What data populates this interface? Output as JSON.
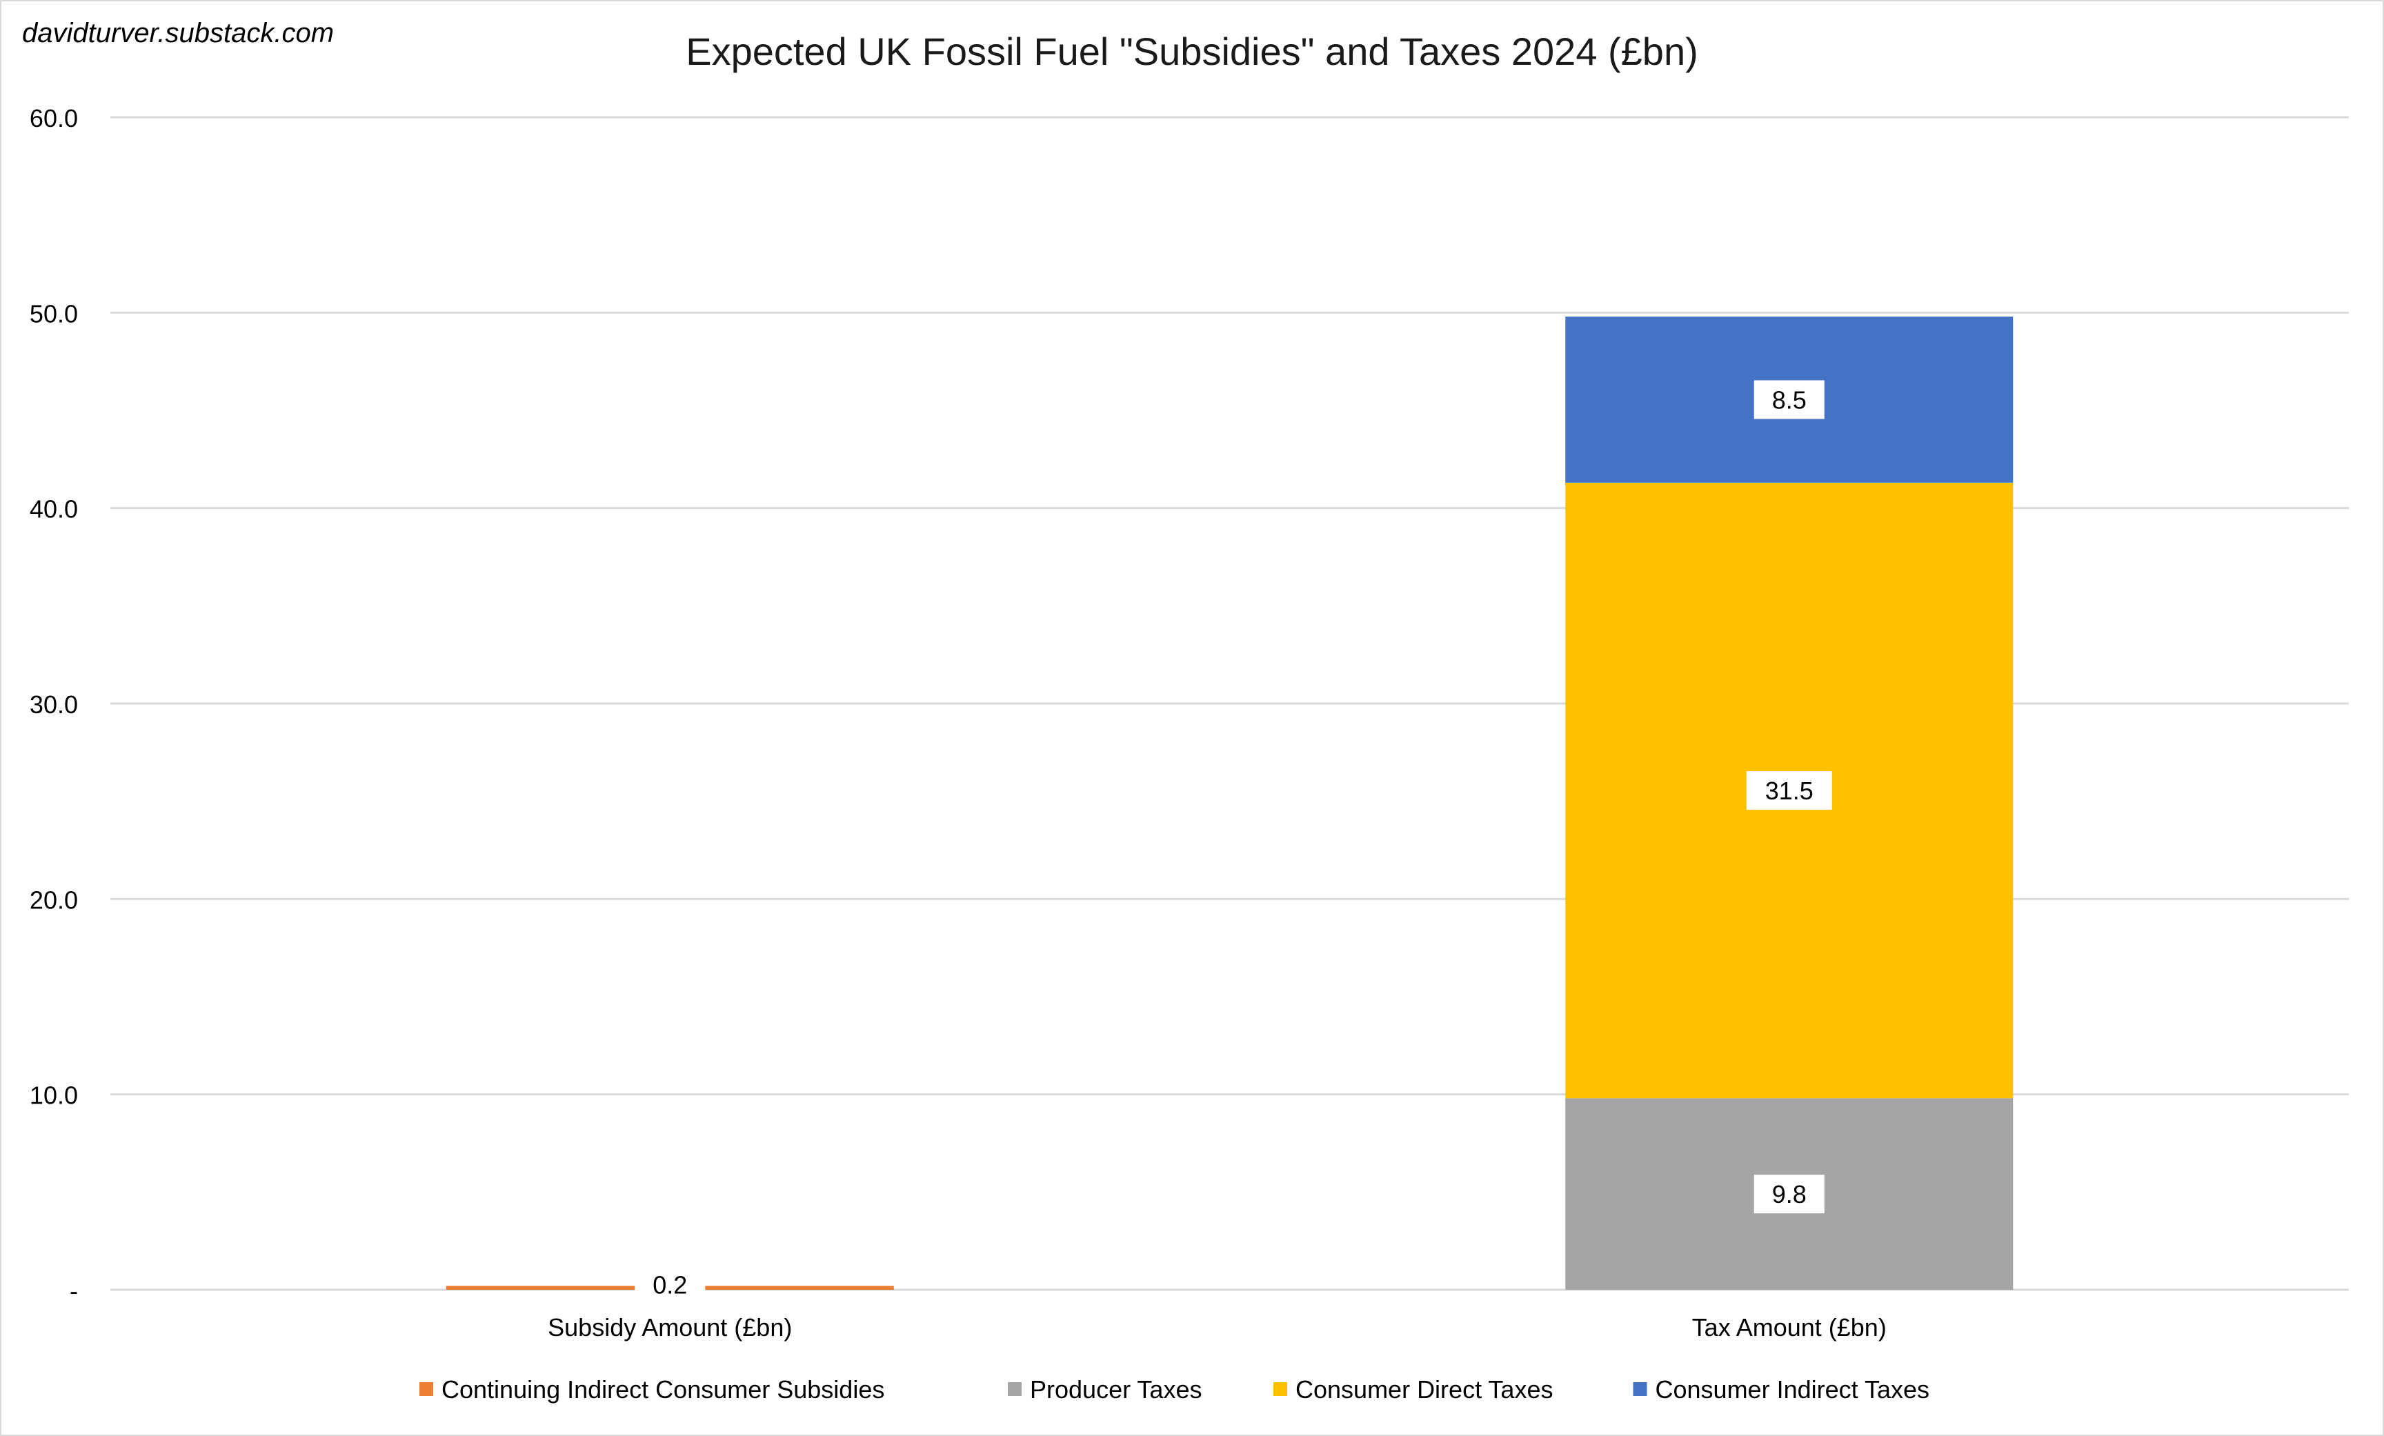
{
  "watermark": "davidturver.substack.com",
  "colors": {
    "continuing_indirect_consumer_subsidies": "#ED7D31",
    "producer_taxes": "#A5A5A5",
    "consumer_direct_taxes": "#FFC000",
    "consumer_indirect_taxes": "#4472C4",
    "gridline": "#d9d9d9",
    "text": "#000000"
  },
  "chart_data": {
    "type": "bar",
    "stacked": true,
    "title": "Expected UK Fossil Fuel \"Subsidies\" and Taxes 2024 (£bn)",
    "categories": [
      "Subsidy Amount (£bn)",
      "Tax Amount (£bn)"
    ],
    "series": [
      {
        "name": "Continuing Indirect Consumer Subsidies",
        "color_key": "continuing_indirect_consumer_subsidies",
        "values": [
          0.2,
          0
        ],
        "labels": [
          "0.2",
          ""
        ]
      },
      {
        "name": "Producer Taxes",
        "color_key": "producer_taxes",
        "values": [
          0,
          9.8
        ],
        "labels": [
          "",
          "9.8"
        ]
      },
      {
        "name": "Consumer Direct Taxes",
        "color_key": "consumer_direct_taxes",
        "values": [
          0,
          31.5
        ],
        "labels": [
          "",
          "31.5"
        ]
      },
      {
        "name": "Consumer Indirect Taxes",
        "color_key": "consumer_indirect_taxes",
        "values": [
          0,
          8.5
        ],
        "labels": [
          "",
          "8.5"
        ]
      }
    ],
    "ylim": [
      0,
      60
    ],
    "yticks": [
      0,
      10,
      20,
      30,
      40,
      50,
      60
    ],
    "ytick_labels": [
      "-",
      "10.0",
      "20.0",
      "30.0",
      "40.0",
      "50.0",
      "60.0"
    ],
    "xlabel": "",
    "ylabel": "",
    "grid": true,
    "legend_position": "bottom"
  }
}
